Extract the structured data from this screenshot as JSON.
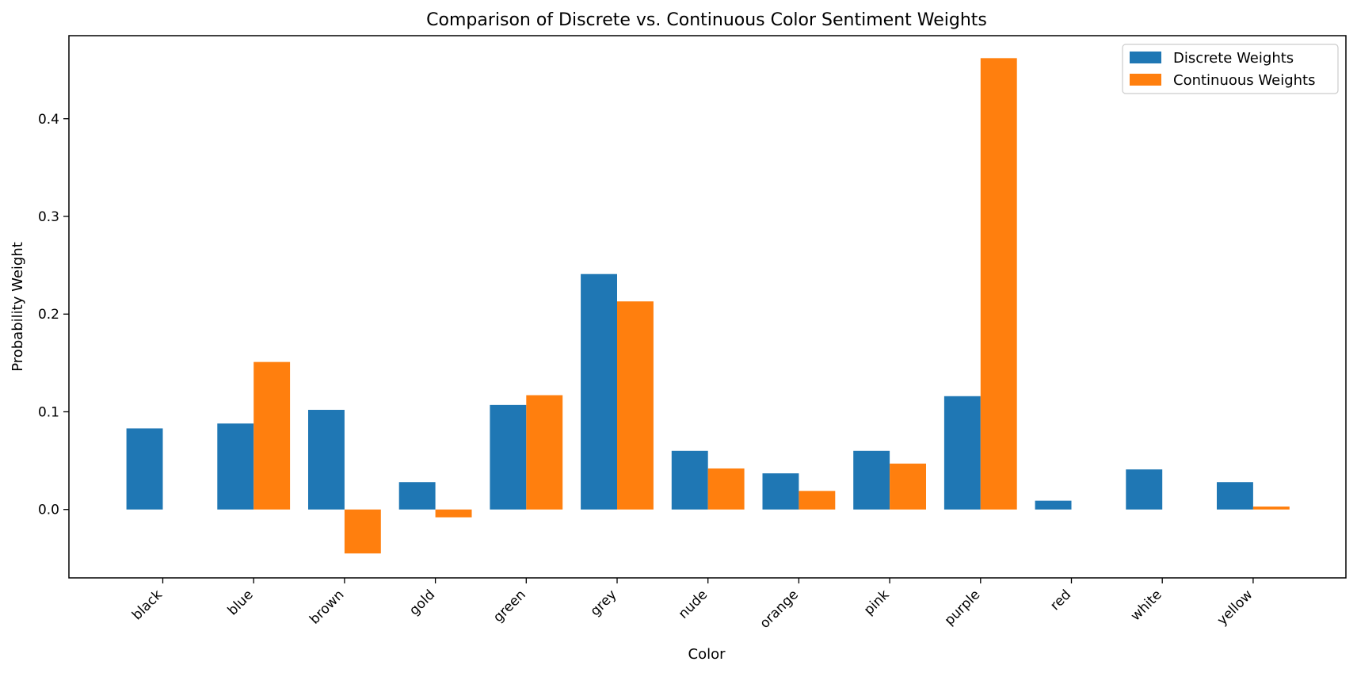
{
  "chart_data": {
    "type": "bar",
    "title": "Comparison of Discrete vs. Continuous Color Sentiment Weights",
    "xlabel": "Color",
    "ylabel": "Probability Weight",
    "categories": [
      "black",
      "blue",
      "brown",
      "gold",
      "green",
      "grey",
      "nude",
      "orange",
      "pink",
      "purple",
      "red",
      "white",
      "yellow"
    ],
    "series": [
      {
        "name": "Discrete Weights",
        "color": "#1f77b4",
        "values": [
          0.083,
          0.088,
          0.102,
          0.028,
          0.107,
          0.241,
          0.06,
          0.037,
          0.06,
          0.116,
          0.009,
          0.041,
          0.028
        ]
      },
      {
        "name": "Continuous Weights",
        "color": "#ff7f0e",
        "values": [
          0.0,
          0.151,
          -0.045,
          -0.008,
          0.117,
          0.213,
          0.042,
          0.019,
          0.047,
          0.462,
          0.0,
          0.0,
          0.003
        ]
      }
    ],
    "ylim": [
      -0.07,
      0.485
    ],
    "yticks": [
      "0.0",
      "0.1",
      "0.2",
      "0.3",
      "0.4"
    ],
    "grid": false,
    "legend_position": "top-right"
  }
}
